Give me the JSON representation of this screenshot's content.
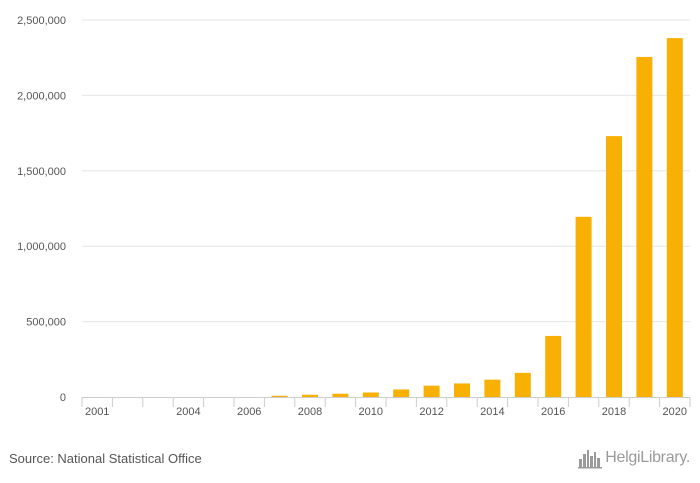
{
  "chart_data": {
    "type": "bar",
    "title": "",
    "xlabel": "",
    "ylabel": "",
    "categories": [
      "2001",
      "2002",
      "2003",
      "2004",
      "2005",
      "2006",
      "2007",
      "2008",
      "2009",
      "2010",
      "2011",
      "2012",
      "2013",
      "2014",
      "2015",
      "2016",
      "2017",
      "2018",
      "2019",
      "2020"
    ],
    "values": [
      0,
      0,
      0,
      0,
      0,
      0,
      8000,
      15000,
      22000,
      30000,
      50000,
      75000,
      90000,
      115000,
      160000,
      405000,
      1195000,
      1730000,
      2255000,
      2380000
    ],
    "ylim": [
      0,
      2500000
    ],
    "yticks": [
      0,
      500000,
      1000000,
      1500000,
      2000000,
      2500000
    ],
    "ytick_labels": [
      "0",
      "500,000",
      "1,000,000",
      "1,500,000",
      "2,000,000",
      "2,500,000"
    ],
    "xtick_labels": [
      "2001",
      "2004",
      "2006",
      "2008",
      "2010",
      "2012",
      "2014",
      "2016",
      "2018",
      "2020"
    ],
    "xtick_positions": [
      "2001",
      "2004",
      "2006",
      "2008",
      "2010",
      "2012",
      "2014",
      "2016",
      "2018",
      "2020"
    ],
    "bar_color": "#f7b003",
    "grid": true
  },
  "footer": {
    "source": "Source: National Statistical Office",
    "logo_text": "HelgiLibrary."
  },
  "colors": {
    "grid": "#e6e6e6",
    "axis": "#cccccc",
    "text": "#555555",
    "logo": "#9a9a9a"
  },
  "icons": {
    "logo": "city-skyline-icon"
  }
}
